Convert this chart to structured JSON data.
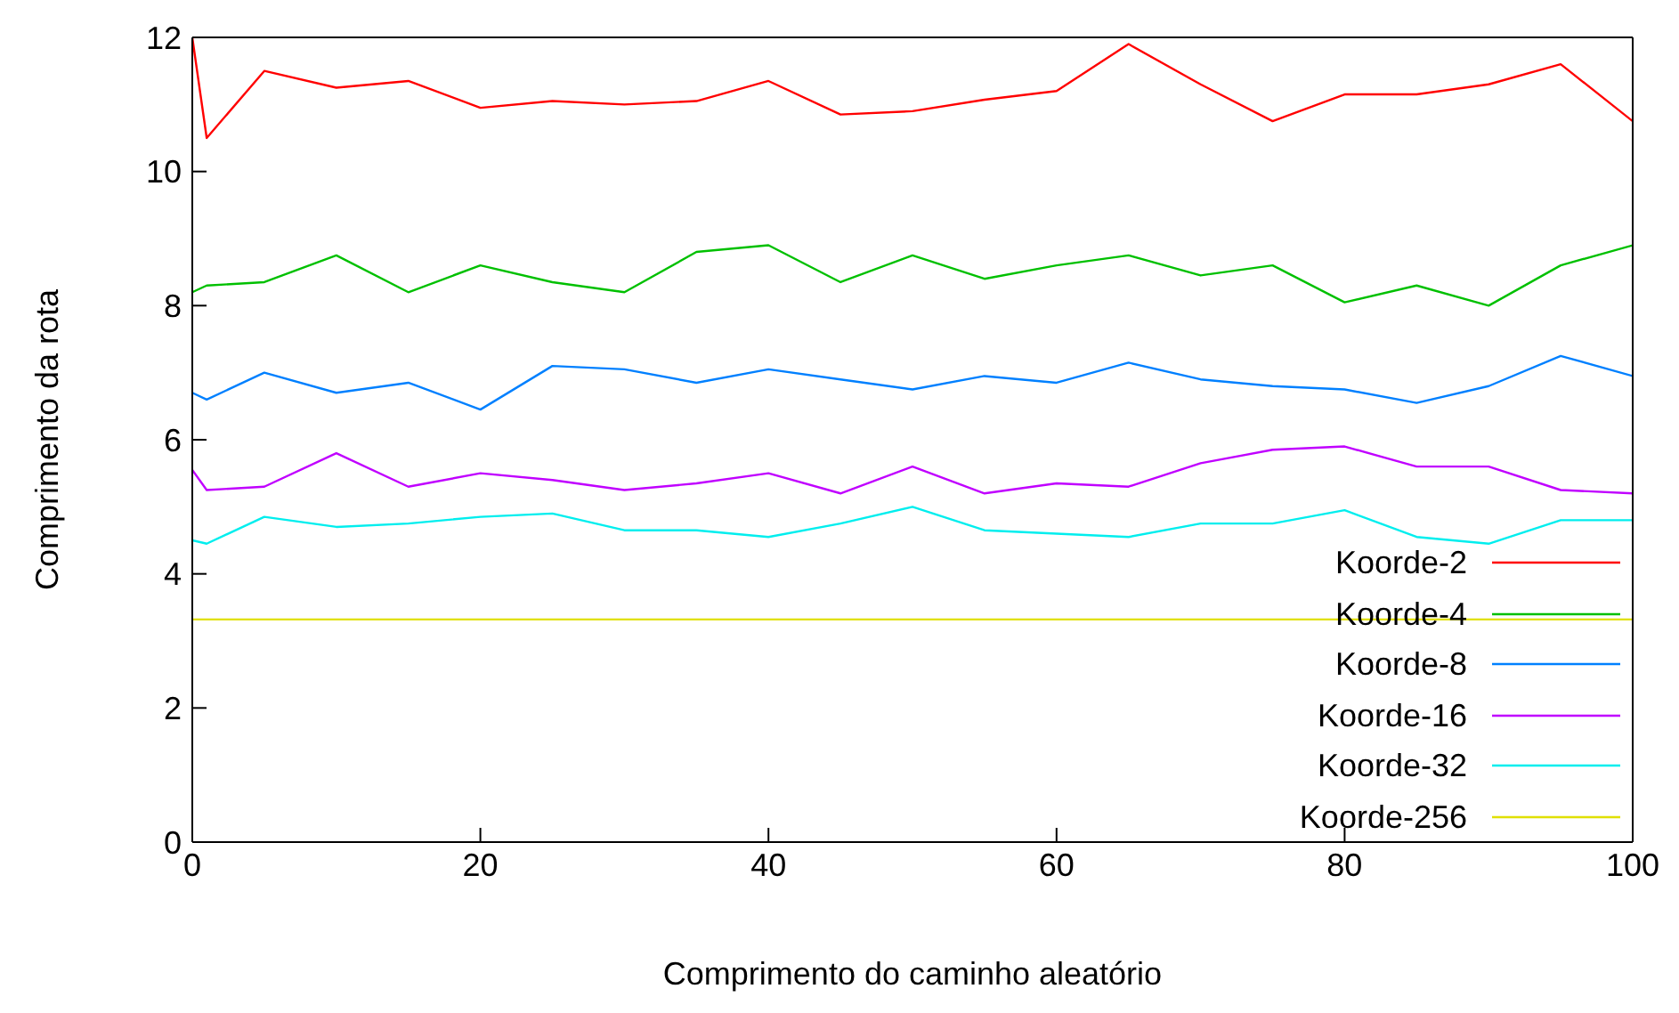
{
  "chart_data": {
    "type": "line",
    "xlabel": "Comprimento do caminho aleatório",
    "ylabel": "Comprimento da rota",
    "x": [
      0,
      1,
      5,
      10,
      15,
      20,
      25,
      30,
      35,
      40,
      45,
      50,
      55,
      60,
      65,
      70,
      75,
      80,
      85,
      90,
      95,
      100
    ],
    "xlim": [
      0,
      100
    ],
    "xticks": [
      0,
      20,
      40,
      60,
      80,
      100
    ],
    "ylim": [
      0,
      12
    ],
    "yticks": [
      0,
      2,
      4,
      6,
      8,
      10,
      12
    ],
    "grid": false,
    "legend": "bottom right",
    "marker": "none",
    "line_style": "solid",
    "series": [
      {
        "name": "Koorde-2",
        "color": "#ff0000",
        "values": [
          12.0,
          10.5,
          11.5,
          11.25,
          11.35,
          10.95,
          11.05,
          11.0,
          11.05,
          11.35,
          10.85,
          10.9,
          11.07,
          11.2,
          11.9,
          11.3,
          10.75,
          11.15,
          11.15,
          11.3,
          11.6,
          10.75
        ]
      },
      {
        "name": "Koorde-4",
        "color": "#00c000",
        "values": [
          8.2,
          8.3,
          8.35,
          8.75,
          8.2,
          8.6,
          8.35,
          8.2,
          8.8,
          8.9,
          8.35,
          8.75,
          8.4,
          8.6,
          8.75,
          8.45,
          8.6,
          8.05,
          8.3,
          8.0,
          8.6,
          8.9
        ]
      },
      {
        "name": "Koorde-8",
        "color": "#0080ff",
        "values": [
          6.7,
          6.6,
          7.0,
          6.7,
          6.85,
          6.45,
          7.1,
          7.05,
          6.85,
          7.05,
          6.9,
          6.75,
          6.95,
          6.85,
          7.15,
          6.9,
          6.8,
          6.75,
          6.55,
          6.8,
          7.25,
          6.95
        ]
      },
      {
        "name": "Koorde-16",
        "color": "#c000ff",
        "values": [
          5.55,
          5.25,
          5.3,
          5.8,
          5.3,
          5.5,
          5.4,
          5.25,
          5.35,
          5.5,
          5.2,
          5.6,
          5.2,
          5.35,
          5.3,
          5.65,
          5.85,
          5.9,
          5.6,
          5.6,
          5.25,
          5.2
        ]
      },
      {
        "name": "Koorde-32",
        "color": "#00eeee",
        "values": [
          4.5,
          4.45,
          4.85,
          4.7,
          4.75,
          4.85,
          4.9,
          4.65,
          4.65,
          4.55,
          4.75,
          5.0,
          4.65,
          4.6,
          4.55,
          4.75,
          4.75,
          4.95,
          4.55,
          4.45,
          4.8,
          4.8
        ]
      },
      {
        "name": "Koorde-256",
        "color": "#e0e000",
        "values": [
          3.32,
          3.32,
          3.32,
          3.32,
          3.32,
          3.32,
          3.32,
          3.32,
          3.32,
          3.32,
          3.32,
          3.32,
          3.32,
          3.32,
          3.32,
          3.32,
          3.32,
          3.32,
          3.32,
          3.32,
          3.32,
          3.32
        ]
      }
    ]
  }
}
